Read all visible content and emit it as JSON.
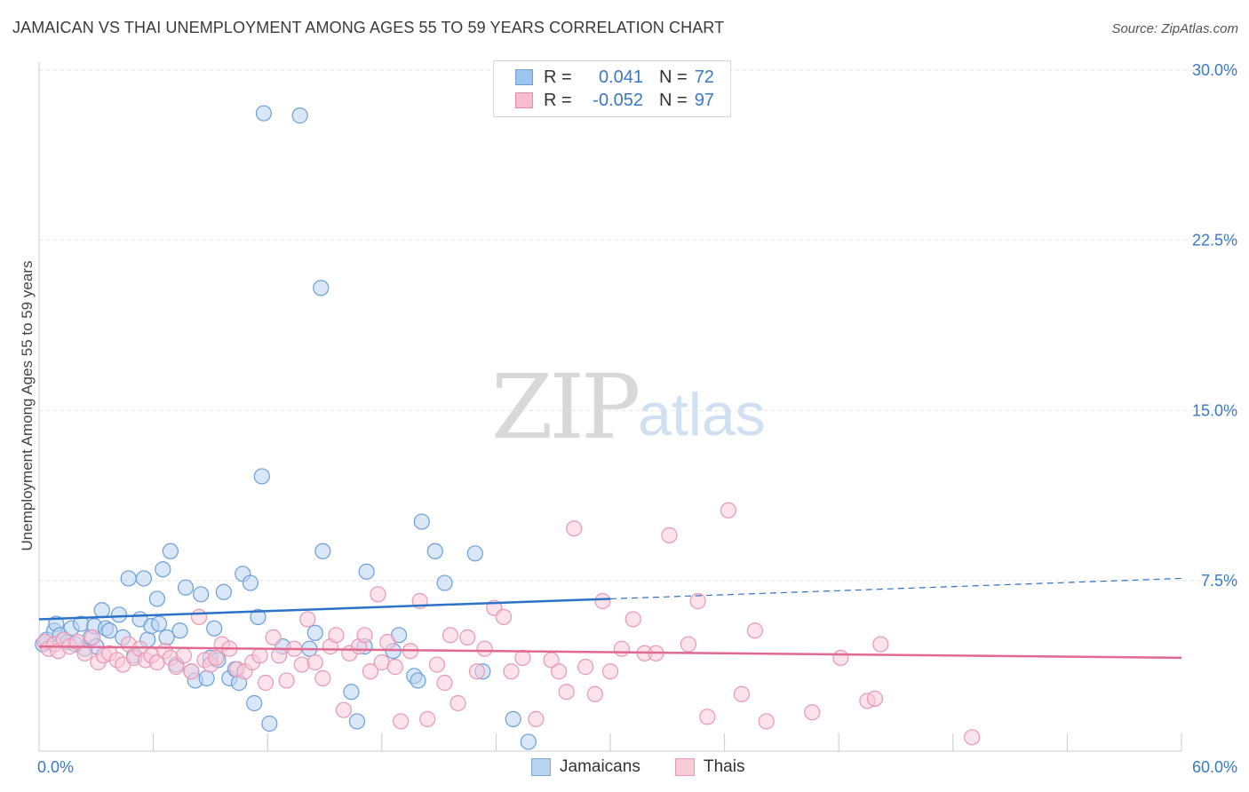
{
  "title": "JAMAICAN VS THAI UNEMPLOYMENT AMONG AGES 55 TO 59 YEARS CORRELATION CHART",
  "source": "Source: ZipAtlas.com",
  "watermark": {
    "zip": "ZIP",
    "atlas": "atlas"
  },
  "legend": {
    "rows": [
      {
        "r_label": "R =",
        "r_value": "0.041",
        "n_label": "N =",
        "n_value": "72",
        "color": "#9ec5f0",
        "border": "#6a9fd8"
      },
      {
        "r_label": "R =",
        "r_value": "-0.052",
        "n_label": "N =",
        "n_value": "97",
        "color": "#f7bcd0",
        "border": "#e58aa8"
      }
    ],
    "bottom": [
      {
        "label": "Jamaicans",
        "color": "#b9d4f3",
        "border": "#7ea9d9"
      },
      {
        "label": "Thais",
        "color": "#f9cbd9",
        "border": "#e798b3"
      }
    ]
  },
  "chart_data": {
    "type": "scatter",
    "title": "JAMAICAN VS THAI UNEMPLOYMENT AMONG AGES 55 TO 59 YEARS CORRELATION CHART",
    "xlabel": "",
    "ylabel": "Unemployment Among Ages 55 to 59 years",
    "xlim": [
      0,
      60
    ],
    "ylim": [
      0,
      31
    ],
    "x_tick_labels": [
      "0.0%",
      "60.0%"
    ],
    "y_ticks": [
      7.5,
      15.0,
      22.5,
      30.0
    ],
    "y_tick_labels": [
      "7.5%",
      "15.0%",
      "22.5%",
      "30.0%"
    ],
    "grid": true,
    "legend_position": "top-center",
    "series": [
      {
        "name": "Jamaicans",
        "fill": "#b9d4f3",
        "stroke": "#6a9fd8",
        "trend_color": "#2c72c8",
        "trend": {
          "x0": 0,
          "y0": 5.8,
          "x1": 30,
          "y1": 6.7,
          "dash_to_x": 60,
          "dash_to_y": 7.6
        },
        "points": [
          [
            0.2,
            4.7
          ],
          [
            0.4,
            4.9
          ],
          [
            0.8,
            5.3
          ],
          [
            0.9,
            5.6
          ],
          [
            1.1,
            5.1
          ],
          [
            1.3,
            4.9
          ],
          [
            1.5,
            4.8
          ],
          [
            1.7,
            5.4
          ],
          [
            2.2,
            5.6
          ],
          [
            2.4,
            4.5
          ],
          [
            2.7,
            5.0
          ],
          [
            2.9,
            5.5
          ],
          [
            3.3,
            6.2
          ],
          [
            3.5,
            5.4
          ],
          [
            3.7,
            5.3
          ],
          [
            4.2,
            6.0
          ],
          [
            4.4,
            5.0
          ],
          [
            4.7,
            7.6
          ],
          [
            5.0,
            4.2
          ],
          [
            5.3,
            5.8
          ],
          [
            5.5,
            7.6
          ],
          [
            5.7,
            4.9
          ],
          [
            5.9,
            5.5
          ],
          [
            6.2,
            6.7
          ],
          [
            6.3,
            5.6
          ],
          [
            6.5,
            8.0
          ],
          [
            6.7,
            5.0
          ],
          [
            6.9,
            8.8
          ],
          [
            7.2,
            3.8
          ],
          [
            7.4,
            5.3
          ],
          [
            7.7,
            7.2
          ],
          [
            8.0,
            3.5
          ],
          [
            8.2,
            3.1
          ],
          [
            8.5,
            6.9
          ],
          [
            8.8,
            3.2
          ],
          [
            9.0,
            4.1
          ],
          [
            9.2,
            5.4
          ],
          [
            9.7,
            7.0
          ],
          [
            10.0,
            3.2
          ],
          [
            10.3,
            3.6
          ],
          [
            10.5,
            3.0
          ],
          [
            10.7,
            7.8
          ],
          [
            11.1,
            7.4
          ],
          [
            11.3,
            2.1
          ],
          [
            11.5,
            5.9
          ],
          [
            11.7,
            12.1
          ],
          [
            11.8,
            28.1
          ],
          [
            12.1,
            1.2
          ],
          [
            12.8,
            4.6
          ],
          [
            13.7,
            28.0
          ],
          [
            14.2,
            4.5
          ],
          [
            14.5,
            5.2
          ],
          [
            14.8,
            20.4
          ],
          [
            14.9,
            8.8
          ],
          [
            16.7,
            1.3
          ],
          [
            16.4,
            2.6
          ],
          [
            17.1,
            4.6
          ],
          [
            17.2,
            7.9
          ],
          [
            18.6,
            4.4
          ],
          [
            18.9,
            5.1
          ],
          [
            19.7,
            3.3
          ],
          [
            19.9,
            3.1
          ],
          [
            20.1,
            10.1
          ],
          [
            20.8,
            8.8
          ],
          [
            21.3,
            7.4
          ],
          [
            22.9,
            8.7
          ],
          [
            23.3,
            3.5
          ],
          [
            24.9,
            1.4
          ],
          [
            25.7,
            0.4
          ],
          [
            9.4,
            4.0
          ],
          [
            1.9,
            4.7
          ],
          [
            3.0,
            4.6
          ]
        ]
      },
      {
        "name": "Thais",
        "fill": "#f9cbd9",
        "stroke": "#e798b3",
        "trend_color": "#e0698f",
        "trend": {
          "x0": 0,
          "y0": 4.6,
          "x1": 60,
          "y1": 4.1
        },
        "points": [
          [
            0.3,
            4.8
          ],
          [
            0.5,
            4.5
          ],
          [
            0.8,
            4.7
          ],
          [
            1.0,
            4.4
          ],
          [
            1.3,
            4.9
          ],
          [
            1.6,
            4.6
          ],
          [
            2.0,
            4.8
          ],
          [
            2.4,
            4.3
          ],
          [
            2.8,
            5.0
          ],
          [
            3.1,
            3.9
          ],
          [
            3.4,
            4.2
          ],
          [
            3.7,
            4.3
          ],
          [
            4.1,
            4.0
          ],
          [
            4.4,
            3.8
          ],
          [
            4.7,
            4.7
          ],
          [
            5.0,
            4.1
          ],
          [
            5.3,
            4.5
          ],
          [
            5.6,
            4.0
          ],
          [
            5.9,
            4.2
          ],
          [
            6.2,
            3.9
          ],
          [
            6.6,
            4.4
          ],
          [
            6.9,
            4.1
          ],
          [
            7.2,
            3.7
          ],
          [
            7.6,
            4.2
          ],
          [
            8.0,
            3.5
          ],
          [
            8.4,
            5.9
          ],
          [
            8.7,
            4.0
          ],
          [
            9.0,
            3.8
          ],
          [
            9.3,
            4.1
          ],
          [
            9.6,
            4.7
          ],
          [
            10.0,
            4.5
          ],
          [
            10.4,
            3.6
          ],
          [
            10.8,
            3.5
          ],
          [
            11.2,
            3.9
          ],
          [
            11.6,
            4.2
          ],
          [
            11.9,
            3.0
          ],
          [
            12.3,
            5.0
          ],
          [
            12.6,
            4.2
          ],
          [
            13.0,
            3.1
          ],
          [
            13.4,
            4.5
          ],
          [
            13.8,
            3.8
          ],
          [
            14.1,
            5.8
          ],
          [
            14.5,
            3.9
          ],
          [
            14.9,
            3.2
          ],
          [
            15.3,
            4.6
          ],
          [
            15.6,
            5.1
          ],
          [
            16.0,
            1.8
          ],
          [
            16.3,
            4.3
          ],
          [
            16.8,
            4.6
          ],
          [
            17.1,
            5.1
          ],
          [
            17.4,
            3.5
          ],
          [
            17.8,
            6.9
          ],
          [
            18.0,
            3.9
          ],
          [
            18.3,
            4.8
          ],
          [
            18.7,
            3.7
          ],
          [
            19.0,
            1.3
          ],
          [
            19.5,
            4.4
          ],
          [
            20.0,
            6.6
          ],
          [
            20.4,
            1.4
          ],
          [
            20.9,
            3.8
          ],
          [
            21.3,
            3.0
          ],
          [
            21.6,
            5.1
          ],
          [
            22.0,
            2.1
          ],
          [
            22.5,
            5.0
          ],
          [
            23.0,
            3.5
          ],
          [
            23.4,
            4.5
          ],
          [
            23.9,
            6.3
          ],
          [
            24.4,
            5.9
          ],
          [
            24.8,
            3.5
          ],
          [
            25.4,
            4.1
          ],
          [
            26.1,
            1.4
          ],
          [
            26.9,
            4.0
          ],
          [
            27.3,
            3.5
          ],
          [
            27.7,
            2.6
          ],
          [
            28.1,
            9.8
          ],
          [
            28.7,
            3.7
          ],
          [
            29.2,
            2.5
          ],
          [
            29.6,
            6.6
          ],
          [
            30.0,
            3.5
          ],
          [
            30.6,
            4.5
          ],
          [
            31.2,
            5.8
          ],
          [
            31.8,
            4.3
          ],
          [
            32.4,
            4.3
          ],
          [
            33.1,
            9.5
          ],
          [
            34.1,
            4.7
          ],
          [
            34.6,
            6.6
          ],
          [
            35.1,
            1.5
          ],
          [
            36.2,
            10.6
          ],
          [
            36.9,
            2.5
          ],
          [
            37.6,
            5.3
          ],
          [
            38.2,
            1.3
          ],
          [
            40.6,
            1.7
          ],
          [
            42.1,
            4.1
          ],
          [
            43.5,
            2.2
          ],
          [
            43.9,
            2.3
          ],
          [
            44.2,
            4.7
          ],
          [
            49.0,
            0.6
          ]
        ]
      }
    ]
  }
}
